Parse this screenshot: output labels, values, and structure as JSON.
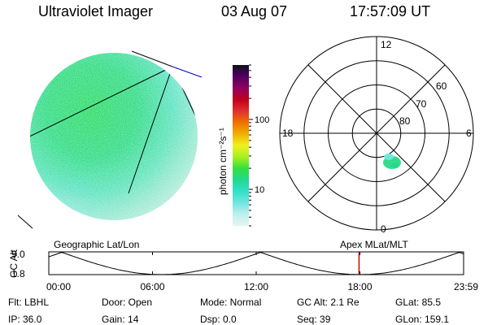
{
  "header": {
    "instrument": "Ultraviolet Imager",
    "date": "03 Aug 07",
    "time": "17:57:09 UT"
  },
  "colorbar": {
    "unit_label": "photon cm⁻²s⁻¹",
    "ticks": [
      {
        "label": "100",
        "value": 100
      },
      {
        "label": "10",
        "value": 10
      }
    ],
    "scale": "log",
    "range": [
      3,
      600
    ],
    "colors": [
      "#e6f4f4",
      "#bff0f0",
      "#6fe6e0",
      "#33e0c8",
      "#22d890",
      "#33e040",
      "#a8f020",
      "#f0f020",
      "#f0b000",
      "#f07000",
      "#e03030",
      "#c00018",
      "#900060",
      "#500060",
      "#101020"
    ]
  },
  "polar": {
    "mlt_labels": {
      "top": "12",
      "bottom": "0",
      "left": "18",
      "right": "6"
    },
    "lat_labels": [
      "60",
      "70",
      "80"
    ],
    "lat_rings": [
      50,
      60,
      70,
      80
    ]
  },
  "timeline": {
    "y_axis_label": "GC Alt",
    "y_max_label": "9.0",
    "y_min_label": "1.8",
    "left_title": "Geographic Lat/Lon",
    "right_title": "Apex MLat/MLT",
    "ticks": [
      "00:00",
      "06:00",
      "12:00",
      "18:00",
      "23:59"
    ],
    "current_hour": 17.95,
    "marker_color": "#cc0000"
  },
  "footer": {
    "rows": [
      [
        {
          "key": "flt",
          "text": "Flt: LBHL"
        },
        {
          "key": "door",
          "text": "Door: Open"
        },
        {
          "key": "mode",
          "text": "Mode: Normal"
        },
        {
          "key": "gcalt",
          "text": "GC Alt: 2.1 Re"
        },
        {
          "key": "glat",
          "text": "GLat:  85.5"
        }
      ],
      [
        {
          "key": "ip",
          "text": "IP: 36.0"
        },
        {
          "key": "gain",
          "text": "Gain: 14"
        },
        {
          "key": "dsp",
          "text": "Dsp:     0.0"
        },
        {
          "key": "seq",
          "text": "Seq: 39"
        },
        {
          "key": "glon",
          "text": "GLon: 159.1"
        }
      ]
    ]
  }
}
